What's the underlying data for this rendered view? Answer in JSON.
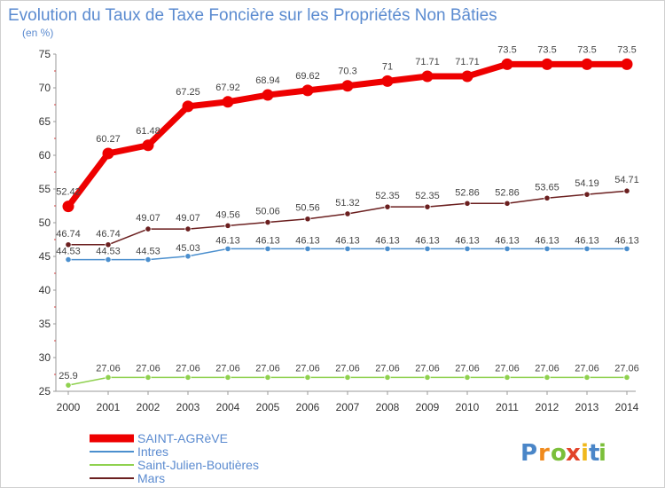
{
  "chart_data": {
    "type": "line",
    "title": "Evolution du Taux de Taxe Foncière sur les Propriétés Non Bâties",
    "unit_label": "(en %)",
    "xlabel": "",
    "ylabel": "",
    "ylim": [
      25,
      75
    ],
    "yticks": [
      25,
      30,
      35,
      40,
      45,
      50,
      55,
      60,
      65,
      70,
      75
    ],
    "grid": false,
    "legend_position": "bottom-left",
    "categories": [
      "2000",
      "2001",
      "2002",
      "2003",
      "2004",
      "2005",
      "2006",
      "2007",
      "2008",
      "2009",
      "2010",
      "2011",
      "2012",
      "2013",
      "2014"
    ],
    "series": [
      {
        "name": "SAINT-AGRèVE",
        "color": "#ee0000",
        "values": [
          52.42,
          60.27,
          61.48,
          67.25,
          67.92,
          68.94,
          69.62,
          70.3,
          71,
          71.71,
          71.71,
          73.5,
          73.5,
          73.5,
          73.5
        ],
        "labels": [
          "52.42",
          "60.27",
          "61.48",
          "67.25",
          "67.92",
          "68.94",
          "69.62",
          "70.3",
          "71",
          "71.71",
          "71.71",
          "73.5",
          "73.5",
          "73.5",
          "73.5"
        ]
      },
      {
        "name": "Intres",
        "color": "#4b8fce",
        "values": [
          44.53,
          44.53,
          44.53,
          45.03,
          46.13,
          46.13,
          46.13,
          46.13,
          46.13,
          46.13,
          46.13,
          46.13,
          46.13,
          46.13,
          46.13
        ],
        "labels": [
          "44.53",
          "44.53",
          "44.53",
          "45.03",
          "46.13",
          "46.13",
          "46.13",
          "46.13",
          "46.13",
          "46.13",
          "46.13",
          "46.13",
          "46.13",
          "46.13",
          "46.13"
        ]
      },
      {
        "name": "Saint-Julien-Boutières",
        "color": "#8fd14f",
        "values": [
          25.9,
          27.06,
          27.06,
          27.06,
          27.06,
          27.06,
          27.06,
          27.06,
          27.06,
          27.06,
          27.06,
          27.06,
          27.06,
          27.06,
          27.06
        ],
        "labels": [
          "25.9",
          "27.06",
          "27.06",
          "27.06",
          "27.06",
          "27.06",
          "27.06",
          "27.06",
          "27.06",
          "27.06",
          "27.06",
          "27.06",
          "27.06",
          "27.06",
          "27.06"
        ]
      },
      {
        "name": "Mars",
        "color": "#6b1f1f",
        "values": [
          46.74,
          46.74,
          49.07,
          49.07,
          49.56,
          50.06,
          50.56,
          51.32,
          52.35,
          52.35,
          52.86,
          52.86,
          53.65,
          54.19,
          54.71
        ],
        "labels": [
          "46.74",
          "46.74",
          "49.07",
          "49.07",
          "49.56",
          "50.06",
          "50.56",
          "51.32",
          "52.35",
          "52.35",
          "52.86",
          "52.86",
          "53.65",
          "54.19",
          "54.71"
        ]
      }
    ]
  },
  "branding": {
    "logo_letters": [
      "P",
      "r",
      "o",
      "x",
      "i",
      "t",
      "i"
    ],
    "logo_colors": [
      "#4a86c8",
      "#f08a1c",
      "#7bbf3a",
      "#e2442a",
      "#f0b81c",
      "#4a86c8",
      "#7bbf3a"
    ]
  }
}
